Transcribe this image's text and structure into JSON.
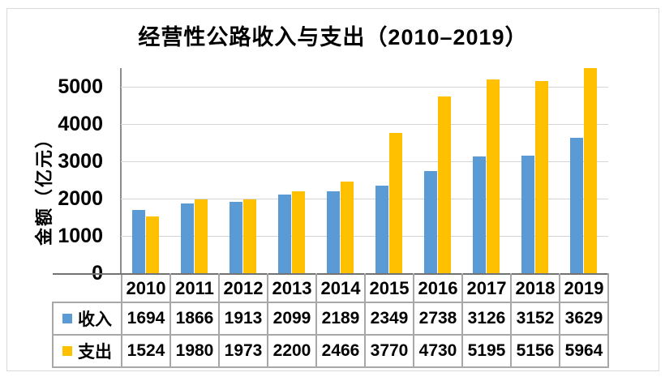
{
  "card": {
    "background": "#ffffff",
    "border_color": "#d9d9d9"
  },
  "chart_data": {
    "type": "bar",
    "title": "经营性公路收入与支出（2010–2019）",
    "ylabel": "金额（亿元）",
    "xlabel": "",
    "categories": [
      "2010",
      "2011",
      "2012",
      "2013",
      "2014",
      "2015",
      "2016",
      "2017",
      "2018",
      "2019"
    ],
    "series": [
      {
        "name": "收入",
        "key": "income",
        "color": "#5B9BD5",
        "values": [
          1694,
          1866,
          1913,
          2099,
          2189,
          2349,
          2738,
          3126,
          3152,
          3629
        ]
      },
      {
        "name": "支出",
        "key": "expense",
        "color": "#FFC000",
        "values": [
          1524,
          1980,
          1973,
          2200,
          2466,
          3770,
          4730,
          5195,
          5156,
          5964
        ]
      }
    ],
    "y_ticks": [
      0,
      1000,
      2000,
      3000,
      4000,
      5000
    ],
    "ylim": [
      0,
      5500
    ],
    "grid": true,
    "axis_color": "#8c8c8c",
    "gridline_color": "#d4d4d4",
    "data_table_shown": true,
    "legend_position": "data-table-left"
  }
}
